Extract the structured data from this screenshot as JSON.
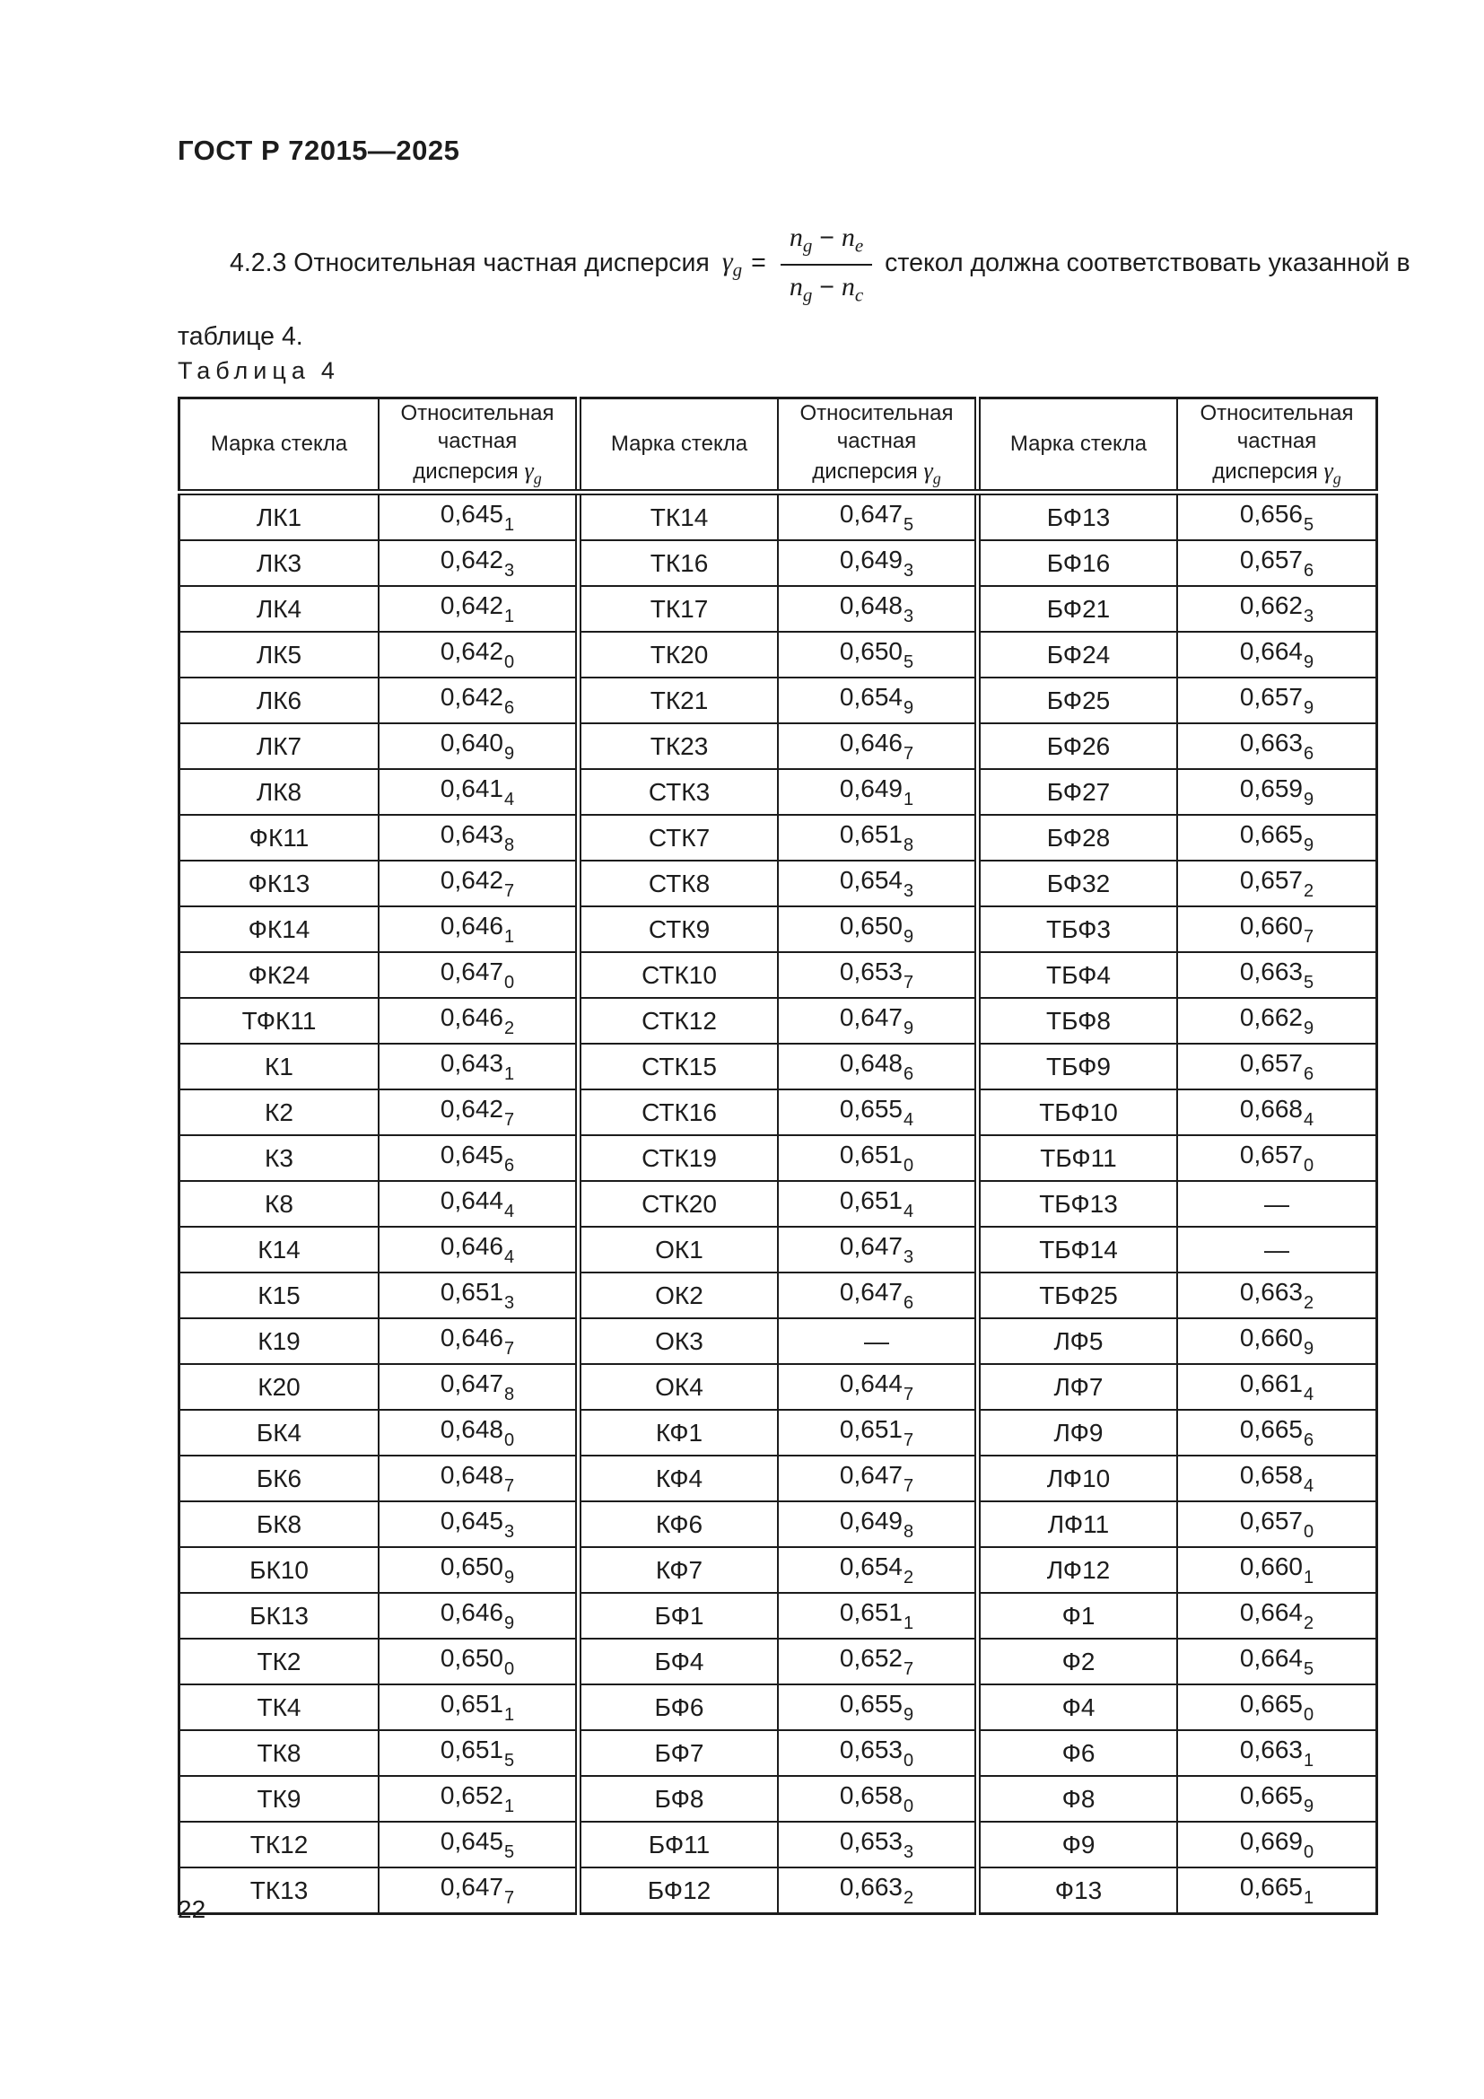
{
  "page": {
    "number": "22",
    "background": "#ffffff",
    "text_color": "#1c1c1c",
    "border_color": "#1c1c1c"
  },
  "doc_header": "ГОСТ Р 72015—2025",
  "paragraph": {
    "before": "4.2.3 Относительная частная дисперсия",
    "after": "стекол должна соответствовать указанной в",
    "line2": "таблице 4.",
    "formula": {
      "gamma": "γ",
      "gamma_sub": "g",
      "equals": "=",
      "num_n1": "n",
      "num_s1": "g",
      "num_minus": "−",
      "num_n2": "n",
      "num_s2": "e",
      "den_n1": "n",
      "den_s1": "g",
      "den_minus": "−",
      "den_n2": "n",
      "den_s2": "c"
    }
  },
  "table": {
    "caption_word": "Таблица",
    "caption_number": "4",
    "headers": {
      "mark": "Марка стекла",
      "disp_line1": "Относительная",
      "disp_line2": "частная",
      "disp_line3": "дисперсия",
      "gamma": "γ",
      "gamma_sub": "g"
    },
    "rows": [
      [
        {
          "m": "ЛК1",
          "v": "0,645",
          "s": "1"
        },
        {
          "m": "ТК14",
          "v": "0,647",
          "s": "5"
        },
        {
          "m": "БФ13",
          "v": "0,656",
          "s": "5"
        }
      ],
      [
        {
          "m": "ЛК3",
          "v": "0,642",
          "s": "3"
        },
        {
          "m": "ТК16",
          "v": "0,649",
          "s": "3"
        },
        {
          "m": "БФ16",
          "v": "0,657",
          "s": "6"
        }
      ],
      [
        {
          "m": "ЛК4",
          "v": "0,642",
          "s": "1"
        },
        {
          "m": "ТК17",
          "v": "0,648",
          "s": "3"
        },
        {
          "m": "БФ21",
          "v": "0,662",
          "s": "3"
        }
      ],
      [
        {
          "m": "ЛК5",
          "v": "0,642",
          "s": "0"
        },
        {
          "m": "ТК20",
          "v": "0,650",
          "s": "5"
        },
        {
          "m": "БФ24",
          "v": "0,664",
          "s": "9"
        }
      ],
      [
        {
          "m": "ЛК6",
          "v": "0,642",
          "s": "6"
        },
        {
          "m": "ТК21",
          "v": "0,654",
          "s": "9"
        },
        {
          "m": "БФ25",
          "v": "0,657",
          "s": "9"
        }
      ],
      [
        {
          "m": "ЛК7",
          "v": "0,640",
          "s": "9"
        },
        {
          "m": "ТК23",
          "v": "0,646",
          "s": "7"
        },
        {
          "m": "БФ26",
          "v": "0,663",
          "s": "6"
        }
      ],
      [
        {
          "m": "ЛК8",
          "v": "0,641",
          "s": "4"
        },
        {
          "m": "СТК3",
          "v": "0,649",
          "s": "1"
        },
        {
          "m": "БФ27",
          "v": "0,659",
          "s": "9"
        }
      ],
      [
        {
          "m": "ФК11",
          "v": "0,643",
          "s": "8"
        },
        {
          "m": "СТК7",
          "v": "0,651",
          "s": "8"
        },
        {
          "m": "БФ28",
          "v": "0,665",
          "s": "9"
        }
      ],
      [
        {
          "m": "ФК13",
          "v": "0,642",
          "s": "7"
        },
        {
          "m": "СТК8",
          "v": "0,654",
          "s": "3"
        },
        {
          "m": "БФ32",
          "v": "0,657",
          "s": "2"
        }
      ],
      [
        {
          "m": "ФК14",
          "v": "0,646",
          "s": "1"
        },
        {
          "m": "СТК9",
          "v": "0,650",
          "s": "9"
        },
        {
          "m": "ТБФ3",
          "v": "0,660",
          "s": "7"
        }
      ],
      [
        {
          "m": "ФК24",
          "v": "0,647",
          "s": "0"
        },
        {
          "m": "СТК10",
          "v": "0,653",
          "s": "7"
        },
        {
          "m": "ТБФ4",
          "v": "0,663",
          "s": "5"
        }
      ],
      [
        {
          "m": "ТФК11",
          "v": "0,646",
          "s": "2"
        },
        {
          "m": "СТК12",
          "v": "0,647",
          "s": "9"
        },
        {
          "m": "ТБФ8",
          "v": "0,662",
          "s": "9"
        }
      ],
      [
        {
          "m": "К1",
          "v": "0,643",
          "s": "1"
        },
        {
          "m": "СТК15",
          "v": "0,648",
          "s": "6"
        },
        {
          "m": "ТБФ9",
          "v": "0,657",
          "s": "6"
        }
      ],
      [
        {
          "m": "К2",
          "v": "0,642",
          "s": "7"
        },
        {
          "m": "СТК16",
          "v": "0,655",
          "s": "4"
        },
        {
          "m": "ТБФ10",
          "v": "0,668",
          "s": "4"
        }
      ],
      [
        {
          "m": "К3",
          "v": "0,645",
          "s": "6"
        },
        {
          "m": "СТК19",
          "v": "0,651",
          "s": "0"
        },
        {
          "m": "ТБФ11",
          "v": "0,657",
          "s": "0"
        }
      ],
      [
        {
          "m": "К8",
          "v": "0,644",
          "s": "4"
        },
        {
          "m": "СТК20",
          "v": "0,651",
          "s": "4"
        },
        {
          "m": "ТБФ13",
          "v": "—",
          "s": ""
        }
      ],
      [
        {
          "m": "К14",
          "v": "0,646",
          "s": "4"
        },
        {
          "m": "ОК1",
          "v": "0,647",
          "s": "3"
        },
        {
          "m": "ТБФ14",
          "v": "—",
          "s": ""
        }
      ],
      [
        {
          "m": "К15",
          "v": "0,651",
          "s": "3"
        },
        {
          "m": "ОК2",
          "v": "0,647",
          "s": "6"
        },
        {
          "m": "ТБФ25",
          "v": "0,663",
          "s": "2"
        }
      ],
      [
        {
          "m": "К19",
          "v": "0,646",
          "s": "7"
        },
        {
          "m": "ОК3",
          "v": "—",
          "s": ""
        },
        {
          "m": "ЛФ5",
          "v": "0,660",
          "s": "9"
        }
      ],
      [
        {
          "m": "К20",
          "v": "0,647",
          "s": "8"
        },
        {
          "m": "ОК4",
          "v": "0,644",
          "s": "7"
        },
        {
          "m": "ЛФ7",
          "v": "0,661",
          "s": "4"
        }
      ],
      [
        {
          "m": "БК4",
          "v": "0,648",
          "s": "0"
        },
        {
          "m": "КФ1",
          "v": "0,651",
          "s": "7"
        },
        {
          "m": "ЛФ9",
          "v": "0,665",
          "s": "6"
        }
      ],
      [
        {
          "m": "БК6",
          "v": "0,648",
          "s": "7"
        },
        {
          "m": "КФ4",
          "v": "0,647",
          "s": "7"
        },
        {
          "m": "ЛФ10",
          "v": "0,658",
          "s": "4"
        }
      ],
      [
        {
          "m": "БК8",
          "v": "0,645",
          "s": "3"
        },
        {
          "m": "КФ6",
          "v": "0,649",
          "s": "8"
        },
        {
          "m": "ЛФ11",
          "v": "0,657",
          "s": "0"
        }
      ],
      [
        {
          "m": "БК10",
          "v": "0,650",
          "s": "9"
        },
        {
          "m": "КФ7",
          "v": "0,654",
          "s": "2"
        },
        {
          "m": "ЛФ12",
          "v": "0,660",
          "s": "1"
        }
      ],
      [
        {
          "m": "БК13",
          "v": "0,646",
          "s": "9"
        },
        {
          "m": "БФ1",
          "v": "0,651",
          "s": "1"
        },
        {
          "m": "Ф1",
          "v": "0,664",
          "s": "2"
        }
      ],
      [
        {
          "m": "ТК2",
          "v": "0,650",
          "s": "0"
        },
        {
          "m": "БФ4",
          "v": "0,652",
          "s": "7"
        },
        {
          "m": "Ф2",
          "v": "0,664",
          "s": "5"
        }
      ],
      [
        {
          "m": "ТК4",
          "v": "0,651",
          "s": "1"
        },
        {
          "m": "БФ6",
          "v": "0,655",
          "s": "9"
        },
        {
          "m": "Ф4",
          "v": "0,665",
          "s": "0"
        }
      ],
      [
        {
          "m": "ТК8",
          "v": "0,651",
          "s": "5"
        },
        {
          "m": "БФ7",
          "v": "0,653",
          "s": "0"
        },
        {
          "m": "Ф6",
          "v": "0,663",
          "s": "1"
        }
      ],
      [
        {
          "m": "ТК9",
          "v": "0,652",
          "s": "1"
        },
        {
          "m": "БФ8",
          "v": "0,658",
          "s": "0"
        },
        {
          "m": "Ф8",
          "v": "0,665",
          "s": "9"
        }
      ],
      [
        {
          "m": "ТК12",
          "v": "0,645",
          "s": "5"
        },
        {
          "m": "БФ11",
          "v": "0,653",
          "s": "3"
        },
        {
          "m": "Ф9",
          "v": "0,669",
          "s": "0"
        }
      ],
      [
        {
          "m": "ТК13",
          "v": "0,647",
          "s": "7"
        },
        {
          "m": "БФ12",
          "v": "0,663",
          "s": "2"
        },
        {
          "m": "Ф13",
          "v": "0,665",
          "s": "1"
        }
      ]
    ]
  }
}
